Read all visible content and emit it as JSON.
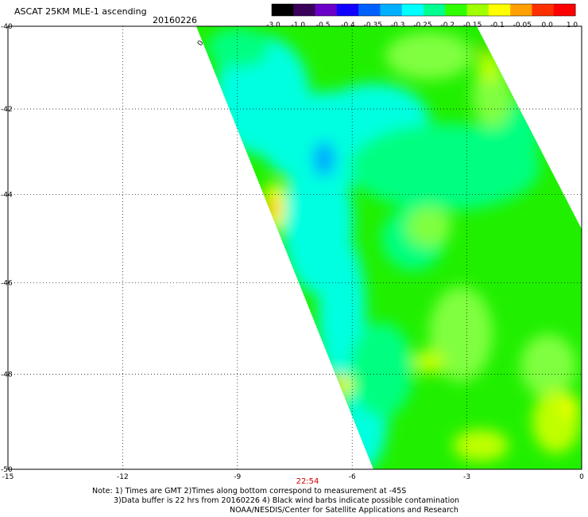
{
  "header": {
    "title": "ASCAT 25KM MLE-1 ascending",
    "date": "20160226"
  },
  "colorbar": {
    "labels": [
      "-3.0",
      "-1.0",
      "-0.5",
      "-0.4",
      "-0.35",
      "-0.3",
      "-0.25",
      "-0.2",
      "-0.15",
      "-0.1",
      "-0.05",
      "0.0",
      "1.0"
    ],
    "colors": [
      "#000000",
      "#3a005a",
      "#6a00c8",
      "#1000ff",
      "#0060ff",
      "#00b0ff",
      "#00ffff",
      "#00ff90",
      "#30ff00",
      "#a0ff00",
      "#ffff00",
      "#ffa000",
      "#ff3000",
      "#ff0000"
    ]
  },
  "map": {
    "lat_labels": [
      "-40",
      "-42",
      "-44",
      "-46",
      "-48",
      "-50"
    ],
    "lon_labels": [
      "-15",
      "-12",
      "-9",
      "-6",
      "-3",
      "0"
    ],
    "lat_range": [
      -50,
      -40
    ],
    "lon_range": [
      -15,
      0
    ],
    "time_label": "22:54",
    "barb_label": "0",
    "swath_colors": {
      "background": "#20f000",
      "light_green": "#80ff40",
      "mint": "#00ff80",
      "cyan": "#00ffe0",
      "blue": "#00a8ff",
      "yellow": "#ffff00",
      "orange": "#ffa000",
      "red_orange": "#ff6000",
      "yellow_green": "#c0ff00"
    }
  },
  "notes": {
    "line1": "Note: 1) Times are GMT 2)Times along bottom correspond to measurement at -45S",
    "line2": "3)Data buffer is 22 hrs from 20160226 4) Black wind barbs indicate possible contamination",
    "line3": "NOAA/NESDIS/Center for Satellite Applications and Research"
  }
}
